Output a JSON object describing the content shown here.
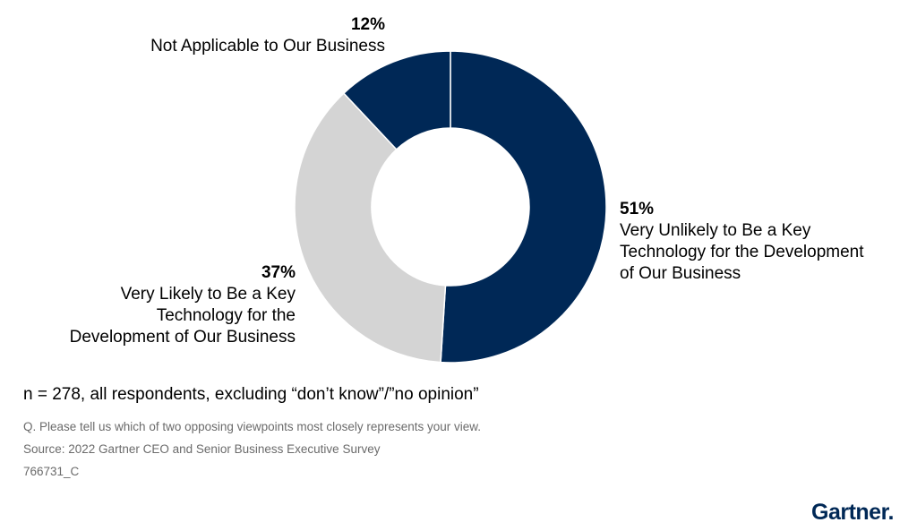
{
  "chart_data": {
    "type": "pie",
    "donut": true,
    "slices": [
      {
        "label": "Very Unlikely to Be a Key Technology for the Development of Our Business",
        "value": 51,
        "value_label": "51%",
        "color": "#002856"
      },
      {
        "label": "Very Likely to Be a Key Technology for the Development of Our Business",
        "value": 37,
        "value_label": "37%",
        "color": "#d4d4d4"
      },
      {
        "label": "Not Applicable to Our Business",
        "value": 12,
        "value_label": "12%",
        "color": "#002856"
      }
    ],
    "start_angle_deg": 0,
    "direction": "clockwise",
    "legend": "none"
  },
  "labels": {
    "l12": {
      "pct": "12%",
      "lines": [
        "Not Applicable to Our Business"
      ]
    },
    "l51": {
      "pct": "51%",
      "lines": [
        "Very Unlikely to Be a Key",
        "Technology for the Development",
        "of Our Business"
      ]
    },
    "l37": {
      "pct": "37%",
      "lines": [
        "Very Likely to Be a Key",
        "Technology for the",
        "Development of Our Business"
      ]
    }
  },
  "notes": {
    "sample": "n = 278, all respondents, excluding “don’t know”/”no opinion”",
    "question": "Q. Please tell us which of two opposing viewpoints most closely represents your view.",
    "source": "Source: 2022 Gartner CEO and Senior Business Executive Survey",
    "id": "766731_C"
  },
  "logo": {
    "text": "Gartner",
    "color": "#002856"
  }
}
